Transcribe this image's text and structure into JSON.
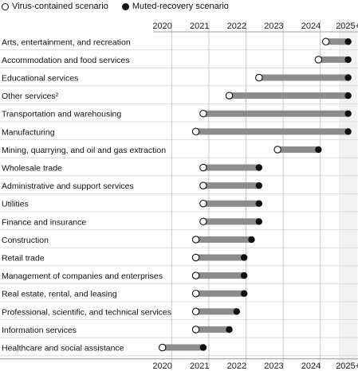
{
  "legend": {
    "virus_contained": "Virus-contained scenario",
    "muted_recovery": "Muted-recovery scenario"
  },
  "chart_data": {
    "type": "dumbbell",
    "categories_top_to_bottom": [
      "Arts, entertainment, and recreation",
      "Accommodation and food services",
      "Educational services",
      "Other services²",
      "Transportation and warehousing",
      "Manufacturing",
      "Mining, quarrying, and oil and gas extraction",
      "Wholesale trade",
      "Administrative and support services",
      "Utilities",
      "Finance and insurance",
      "Construction",
      "Retail trade",
      "Management of companies and enterprises",
      "Real estate, rental, and leasing",
      "Professional, scientific, and technical services",
      "Information services",
      "Healthcare and social assistance"
    ],
    "x_ticks": [
      "2020",
      "2021",
      "2022",
      "2023",
      "2024",
      "2025+"
    ],
    "series": [
      {
        "name": "Virus-contained scenario",
        "marker": "open",
        "values": [
          2024.4,
          2024.2,
          2022.6,
          2021.8,
          2021.1,
          2020.9,
          2023.1,
          2021.1,
          2021.1,
          2021.1,
          2021.1,
          2020.9,
          2020.9,
          2020.9,
          2020.9,
          2020.9,
          2020.9,
          2020.0
        ]
      },
      {
        "name": "Muted-recovery scenario",
        "marker": "filled",
        "values": [
          2025.0,
          2025.0,
          2025.0,
          2025.0,
          2025.0,
          2025.0,
          2024.2,
          2022.6,
          2022.6,
          2022.6,
          2022.6,
          2022.4,
          2022.2,
          2022.2,
          2022.2,
          2022.0,
          2021.8,
          2021.1
        ]
      }
    ],
    "colors": {
      "connector": "#8c8c8c",
      "row_highlight": "#eeeeee",
      "grid": "#bdbdbd",
      "marker": "#111111"
    }
  }
}
